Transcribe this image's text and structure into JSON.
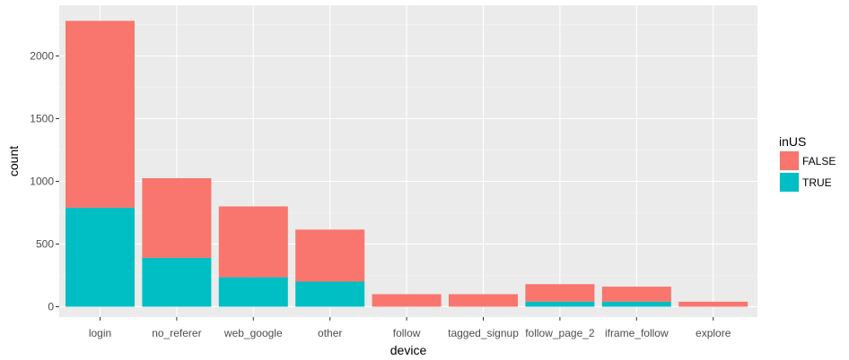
{
  "chart_data": {
    "type": "bar",
    "stacked": true,
    "title": "",
    "xlabel": "device",
    "ylabel": "count",
    "ylim": [
      0,
      2300
    ],
    "yticks": [
      0,
      500,
      1000,
      1500,
      2000
    ],
    "categories": [
      "login",
      "no_referer",
      "web_google",
      "other",
      "follow",
      "tagged_signup",
      "follow_page_2",
      "iframe_follow",
      "explore"
    ],
    "series": [
      {
        "name": "TRUE",
        "color": "#00BFC4",
        "values": [
          790,
          390,
          235,
          200,
          0,
          0,
          40,
          40,
          0
        ]
      },
      {
        "name": "FALSE",
        "color": "#F8766D",
        "values": [
          1490,
          635,
          565,
          415,
          100,
          100,
          140,
          120,
          40
        ]
      }
    ],
    "legend": {
      "title": "inUS",
      "position": "right",
      "entries": [
        {
          "label": "FALSE",
          "color": "#F8766D"
        },
        {
          "label": "TRUE",
          "color": "#00BFC4"
        }
      ]
    },
    "panel_background": "#EBEBEB",
    "grid_color": "#FFFFFF",
    "grid": true
  }
}
